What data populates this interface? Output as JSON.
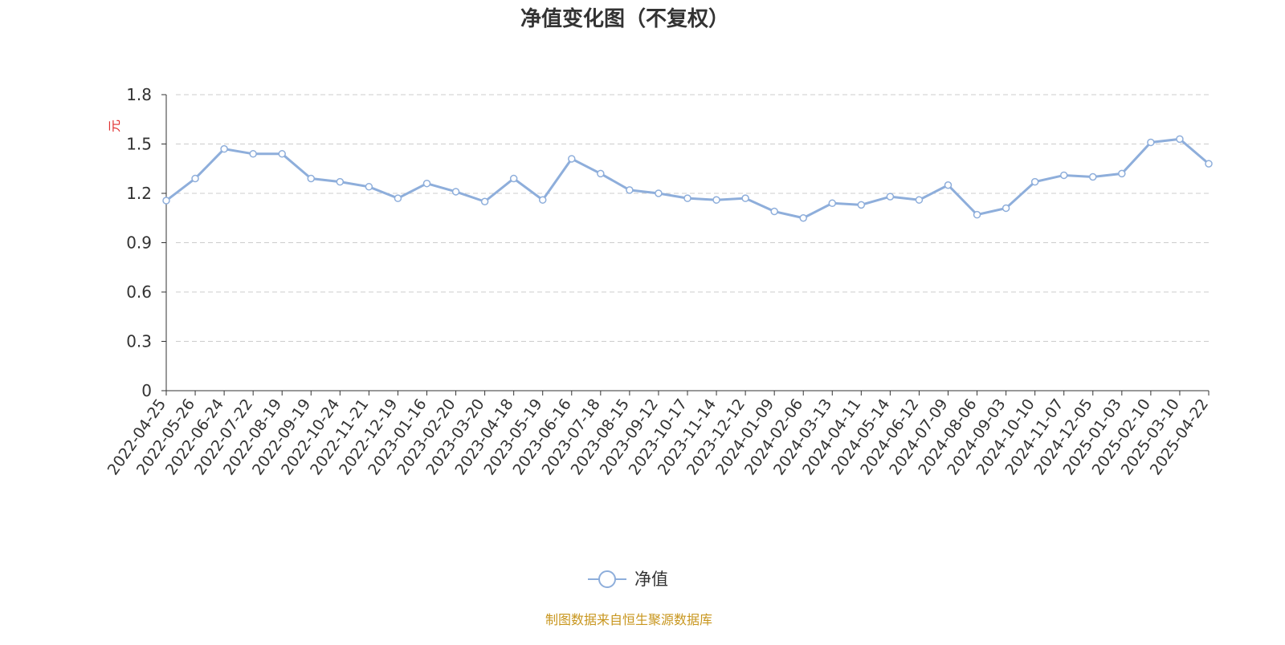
{
  "chart_data": {
    "type": "line",
    "title": "净值变化图（不复权）",
    "y_label": "元",
    "categories": [
      "2022-04-25",
      "2022-05-26",
      "2022-06-24",
      "2022-07-22",
      "2022-08-19",
      "2022-09-19",
      "2022-10-24",
      "2022-11-21",
      "2022-12-19",
      "2023-01-16",
      "2023-02-20",
      "2023-03-20",
      "2023-04-18",
      "2023-05-19",
      "2023-06-16",
      "2023-07-18",
      "2023-08-15",
      "2023-09-12",
      "2023-10-17",
      "2023-11-14",
      "2023-12-12",
      "2024-01-09",
      "2024-02-06",
      "2024-03-13",
      "2024-04-11",
      "2024-05-14",
      "2024-06-12",
      "2024-07-09",
      "2024-08-06",
      "2024-09-03",
      "2024-10-10",
      "2024-11-07",
      "2024-12-05",
      "2025-01-03",
      "2025-02-10",
      "2025-03-10",
      "2025-04-22"
    ],
    "series": [
      {
        "name": "净值",
        "color": "#8eaedb",
        "values": [
          1.156,
          1.29,
          1.47,
          1.44,
          1.44,
          1.29,
          1.27,
          1.24,
          1.17,
          1.26,
          1.21,
          1.15,
          1.29,
          1.16,
          1.41,
          1.32,
          1.22,
          1.2,
          1.17,
          1.16,
          1.17,
          1.09,
          1.05,
          1.14,
          1.13,
          1.18,
          1.16,
          1.25,
          1.07,
          1.11,
          1.27,
          1.31,
          1.3,
          1.32,
          1.51,
          1.53,
          1.38
        ]
      }
    ],
    "ylim": [
      0,
      1.8
    ],
    "yticks": [
      0,
      0.3,
      0.6,
      0.9,
      1.2,
      1.5,
      1.8
    ],
    "grid": true,
    "source": "制图数据来自恒生聚源数据库"
  }
}
